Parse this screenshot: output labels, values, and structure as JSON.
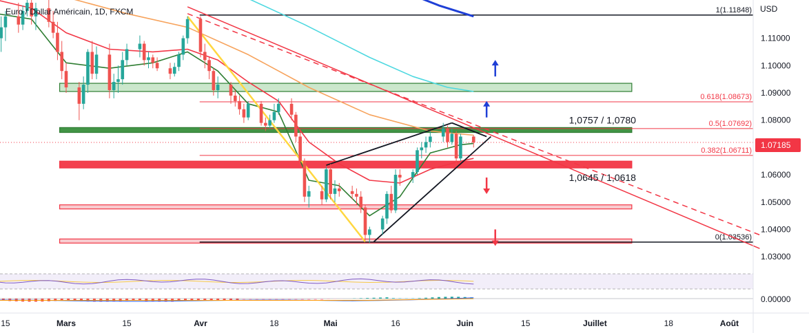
{
  "chart_data": {
    "type": "candlestick",
    "title": "Euro / Dollar Américain, 1D, FXCM",
    "currency": "USD",
    "current_price": "1.07185",
    "y_range": [
      1.025,
      1.124
    ],
    "y_ticks": [
      "1.03000",
      "1.04000",
      "1.05000",
      "1.06000",
      "1.07000",
      "1.08000",
      "1.09000",
      "1.10000",
      "1.11000"
    ],
    "indicator_tick": "0.00000",
    "x_labels": [
      {
        "label": "15",
        "day": -14
      },
      {
        "label": "Mars",
        "day": 0
      },
      {
        "label": "15",
        "day": 14
      },
      {
        "label": "Avr",
        "day": 31
      },
      {
        "label": "18",
        "day": 48
      },
      {
        "label": "Mai",
        "day": 61
      },
      {
        "label": "16",
        "day": 76
      },
      {
        "label": "Juin",
        "day": 92
      },
      {
        "label": "15",
        "day": 106
      },
      {
        "label": "Juillet",
        "day": 122
      },
      {
        "label": "18",
        "day": 139
      },
      {
        "label": "Août",
        "day": 153
      }
    ],
    "candles": [
      [
        -16,
        1.115,
        1.121,
        1.108,
        1.11
      ],
      [
        -15,
        1.11,
        1.118,
        1.105,
        1.114
      ],
      [
        -14,
        1.114,
        1.12,
        1.109,
        1.118
      ],
      [
        -11,
        1.118,
        1.123,
        1.112,
        1.115
      ],
      [
        -10,
        1.115,
        1.122,
        1.113,
        1.12
      ],
      [
        -9,
        1.12,
        1.124,
        1.118,
        1.123
      ],
      [
        -8,
        1.123,
        1.124,
        1.115,
        1.118
      ],
      [
        -7,
        1.118,
        1.123,
        1.113,
        1.121
      ],
      [
        -4,
        1.121,
        1.124,
        1.114,
        1.116
      ],
      [
        -3,
        1.116,
        1.12,
        1.11,
        1.112
      ],
      [
        -2,
        1.112,
        1.116,
        1.102,
        1.105
      ],
      [
        -1,
        1.105,
        1.109,
        1.095,
        1.098
      ],
      [
        0,
        1.098,
        1.101,
        1.09,
        1.092
      ],
      [
        3,
        1.092,
        1.094,
        1.08,
        1.086
      ],
      [
        4,
        1.086,
        1.096,
        1.084,
        1.093
      ],
      [
        5,
        1.093,
        1.106,
        1.09,
        1.105
      ],
      [
        6,
        1.105,
        1.109,
        1.095,
        1.097
      ],
      [
        7,
        1.097,
        1.107,
        1.095,
        1.104
      ],
      [
        10,
        1.104,
        1.108,
        1.088,
        1.091
      ],
      [
        11,
        1.091,
        1.097,
        1.088,
        1.094
      ],
      [
        12,
        1.094,
        1.1,
        1.09,
        1.095
      ],
      [
        13,
        1.095,
        1.105,
        1.093,
        1.102
      ],
      [
        14,
        1.102,
        1.108,
        1.1,
        1.106
      ],
      [
        17,
        1.106,
        1.111,
        1.103,
        1.108
      ],
      [
        18,
        1.108,
        1.109,
        1.1,
        1.102
      ],
      [
        19,
        1.102,
        1.105,
        1.099,
        1.103
      ],
      [
        20,
        1.103,
        1.104,
        1.099,
        1.101
      ],
      [
        21,
        1.101,
        1.103,
        1.098,
        1.099
      ],
      [
        24,
        1.099,
        1.101,
        1.095,
        1.097
      ],
      [
        25,
        1.097,
        1.101,
        1.096,
        1.0995
      ],
      [
        26,
        1.0995,
        1.105,
        1.098,
        1.104
      ],
      [
        27,
        1.104,
        1.111,
        1.102,
        1.11
      ],
      [
        28,
        1.11,
        1.118,
        1.108,
        1.117
      ],
      [
        31,
        1.117,
        1.118,
        1.103,
        1.105
      ],
      [
        32,
        1.105,
        1.108,
        1.099,
        1.102
      ],
      [
        33,
        1.102,
        1.103,
        1.095,
        1.098
      ],
      [
        34,
        1.098,
        1.099,
        1.089,
        1.091
      ],
      [
        35,
        1.091,
        1.096,
        1.088,
        1.093
      ],
      [
        38,
        1.093,
        1.094,
        1.086,
        1.089
      ],
      [
        39,
        1.089,
        1.091,
        1.085,
        1.087
      ],
      [
        40,
        1.087,
        1.089,
        1.082,
        1.084
      ],
      [
        41,
        1.084,
        1.086,
        1.079,
        1.081
      ],
      [
        42,
        1.081,
        1.087,
        1.08,
        1.086
      ],
      [
        45,
        1.086,
        1.087,
        1.078,
        1.079
      ],
      [
        46,
        1.079,
        1.081,
        1.076,
        1.078
      ],
      [
        47,
        1.078,
        1.082,
        1.077,
        1.08
      ],
      [
        48,
        1.08,
        1.086,
        1.079,
        1.083
      ],
      [
        49,
        1.083,
        1.088,
        1.082,
        1.086
      ],
      [
        52,
        1.086,
        1.088,
        1.08,
        1.082
      ],
      [
        53,
        1.082,
        1.083,
        1.072,
        1.074
      ],
      [
        54,
        1.074,
        1.076,
        1.064,
        1.065
      ],
      [
        55,
        1.065,
        1.066,
        1.05,
        1.052
      ],
      [
        56,
        1.052,
        1.056,
        1.048,
        1.054
      ],
      [
        59,
        1.054,
        1.056,
        1.049,
        1.051
      ],
      [
        60,
        1.051,
        1.063,
        1.05,
        1.062
      ],
      [
        61,
        1.062,
        1.064,
        1.051,
        1.053
      ],
      [
        62,
        1.053,
        1.058,
        1.05,
        1.055
      ],
      [
        63,
        1.055,
        1.057,
        1.052,
        1.054
      ],
      [
        66,
        1.054,
        1.056,
        1.051,
        1.053
      ],
      [
        67,
        1.053,
        1.055,
        1.049,
        1.052
      ],
      [
        68,
        1.052,
        1.054,
        1.046,
        1.048
      ],
      [
        69,
        1.048,
        1.049,
        1.036,
        1.038
      ],
      [
        70,
        1.038,
        1.041,
        1.035,
        1.04
      ],
      [
        73,
        1.04,
        1.045,
        1.038,
        1.044
      ],
      [
        74,
        1.044,
        1.054,
        1.042,
        1.053
      ],
      [
        75,
        1.053,
        1.056,
        1.046,
        1.047
      ],
      [
        76,
        1.047,
        1.062,
        1.046,
        1.06
      ],
      [
        77,
        1.06,
        1.062,
        1.056,
        1.059
      ],
      [
        80,
        1.059,
        1.062,
        1.057,
        1.061
      ],
      [
        81,
        1.061,
        1.07,
        1.06,
        1.069
      ],
      [
        82,
        1.069,
        1.072,
        1.066,
        1.07
      ],
      [
        83,
        1.07,
        1.074,
        1.068,
        1.072
      ],
      [
        84,
        1.072,
        1.076,
        1.07,
        1.074
      ],
      [
        87,
        1.074,
        1.079,
        1.072,
        1.077
      ],
      [
        88,
        1.077,
        1.078,
        1.07,
        1.072
      ],
      [
        89,
        1.072,
        1.077,
        1.071,
        1.075
      ],
      [
        90,
        1.075,
        1.076,
        1.064,
        1.066
      ],
      [
        91,
        1.066,
        1.075,
        1.065,
        1.074
      ],
      [
        94,
        1.074,
        1.0745,
        1.07,
        1.07185
      ]
    ],
    "ma_lines": [
      {
        "color": "#2e7d32",
        "points": [
          [
            -16,
            1.119
          ],
          [
            -8,
            1.117
          ],
          [
            0,
            1.101
          ],
          [
            10,
            1.099
          ],
          [
            20,
            1.101
          ],
          [
            28,
            1.105
          ],
          [
            35,
            1.098
          ],
          [
            42,
            1.086
          ],
          [
            49,
            1.083
          ],
          [
            56,
            1.058
          ],
          [
            63,
            1.056
          ],
          [
            70,
            1.045
          ],
          [
            77,
            1.052
          ],
          [
            84,
            1.068
          ],
          [
            91,
            1.071
          ],
          [
            94,
            1.0715
          ]
        ]
      },
      {
        "color": "#f23645",
        "points": [
          [
            -16,
            1.124
          ],
          [
            -8,
            1.121
          ],
          [
            0,
            1.112
          ],
          [
            10,
            1.106
          ],
          [
            20,
            1.105
          ],
          [
            28,
            1.106
          ],
          [
            35,
            1.102
          ],
          [
            42,
            1.094
          ],
          [
            49,
            1.087
          ],
          [
            56,
            1.072
          ],
          [
            63,
            1.064
          ],
          [
            70,
            1.058
          ],
          [
            77,
            1.057
          ],
          [
            84,
            1.062
          ],
          [
            91,
            1.065
          ],
          [
            94,
            1.066
          ]
        ]
      },
      {
        "color": "#f7a35c",
        "points": [
          [
            -16,
            1.126
          ],
          [
            0,
            1.125
          ],
          [
            14,
            1.119
          ],
          [
            28,
            1.114
          ],
          [
            42,
            1.104
          ],
          [
            56,
            1.092
          ],
          [
            70,
            1.082
          ],
          [
            84,
            1.076
          ],
          [
            94,
            1.0745
          ]
        ]
      },
      {
        "color": "#4dd8e0",
        "points": [
          [
            40,
            1.126
          ],
          [
            55,
            1.115
          ],
          [
            70,
            1.103
          ],
          [
            80,
            1.096
          ],
          [
            88,
            1.092
          ],
          [
            94,
            1.0905
          ]
        ]
      },
      {
        "color": "#1e3fd6",
        "points": [
          [
            78,
            1.127
          ],
          [
            86,
            1.122
          ],
          [
            94,
            1.118
          ]
        ]
      }
    ],
    "fib_levels": [
      {
        "label": "1(1.11848)",
        "value": 1.11848,
        "color": "#131722"
      },
      {
        "label": "0.618(1.08673)",
        "value": 1.08673,
        "color": "#f23645"
      },
      {
        "label": "0.5(1.07692)",
        "value": 1.07692,
        "color": "#f23645"
      },
      {
        "label": "0.382(1.06711)",
        "value": 1.06711,
        "color": "#f23645"
      },
      {
        "label": "0(1.03536)",
        "value": 1.03536,
        "color": "#131722"
      }
    ],
    "zones": [
      {
        "from": 1.0905,
        "to": 1.0935,
        "fill": "#c8e6c9",
        "stroke": "#2e7d32"
      },
      {
        "from": 1.0755,
        "to": 1.0773,
        "fill": "#388e3c",
        "stroke": "#2e7d32"
      },
      {
        "from": 1.0625,
        "to": 1.065,
        "fill": "#f23645",
        "stroke": "#f23645"
      },
      {
        "from": 1.0475,
        "to": 1.049,
        "fill": "#f8c8cc",
        "stroke": "#f23645"
      },
      {
        "from": 1.035,
        "to": 1.0365,
        "fill": "#f8c8cc",
        "stroke": "#f23645"
      }
    ],
    "annotations": [
      {
        "text": "1,0757 / 1,0780",
        "day": 116,
        "value": 1.08
      },
      {
        "text": "1,0645 / 1,0618",
        "day": 116,
        "value": 1.059
      }
    ],
    "arrows": [
      {
        "direction": "up",
        "color": "#1e3fd6",
        "day": 99,
        "value": 1.096
      },
      {
        "direction": "up",
        "color": "#1e3fd6",
        "day": 97,
        "value": 1.081
      },
      {
        "direction": "down",
        "color": "#f23645",
        "day": 97,
        "value": 1.059
      },
      {
        "direction": "down",
        "color": "#f23645",
        "day": 99,
        "value": 1.04
      }
    ]
  }
}
